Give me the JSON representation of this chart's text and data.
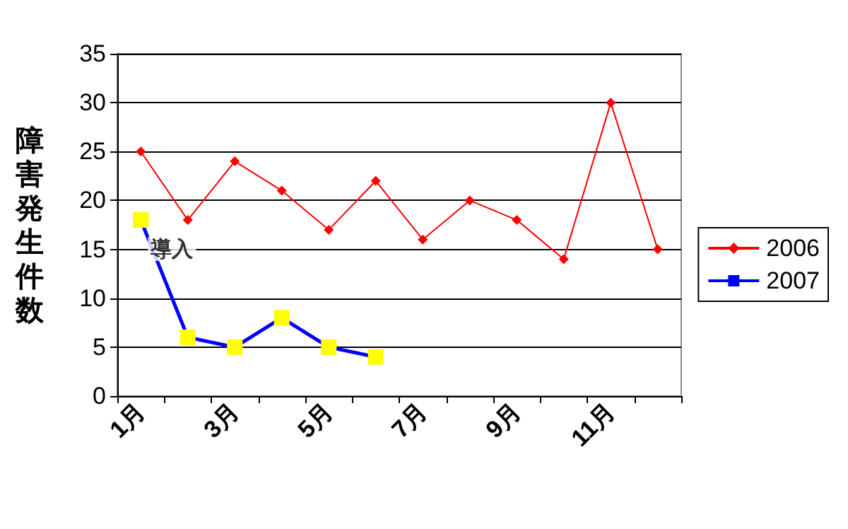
{
  "chart_data": {
    "type": "line",
    "ylabel": "障害発生件数",
    "categories": [
      "1月",
      null,
      "3月",
      null,
      "5月",
      null,
      "7月",
      null,
      "9月",
      null,
      "11月",
      null
    ],
    "series": [
      {
        "name": "2006",
        "color": "#ff0000",
        "marker": "diamond",
        "values": [
          25,
          18,
          24,
          21,
          17,
          22,
          16,
          20,
          18,
          14,
          30,
          15
        ]
      },
      {
        "name": "2007",
        "color": "#0000ff",
        "marker": "square",
        "colors": [
          "#ffff00",
          "#ffff00",
          "#ffff00",
          "#ffff00",
          "#ffff00",
          "#ffff00",
          null,
          null,
          null,
          null,
          null,
          null
        ],
        "values": [
          18,
          6,
          5,
          8,
          5,
          4,
          null,
          null,
          null,
          null,
          null,
          null
        ]
      }
    ],
    "ylim": [
      0,
      35
    ],
    "yticks": [
      0,
      5,
      10,
      15,
      20,
      25,
      30,
      35
    ],
    "grid": "y",
    "legend": "right",
    "annotations": [
      {
        "text": "導入",
        "x": "1月",
        "y": 18
      }
    ]
  }
}
